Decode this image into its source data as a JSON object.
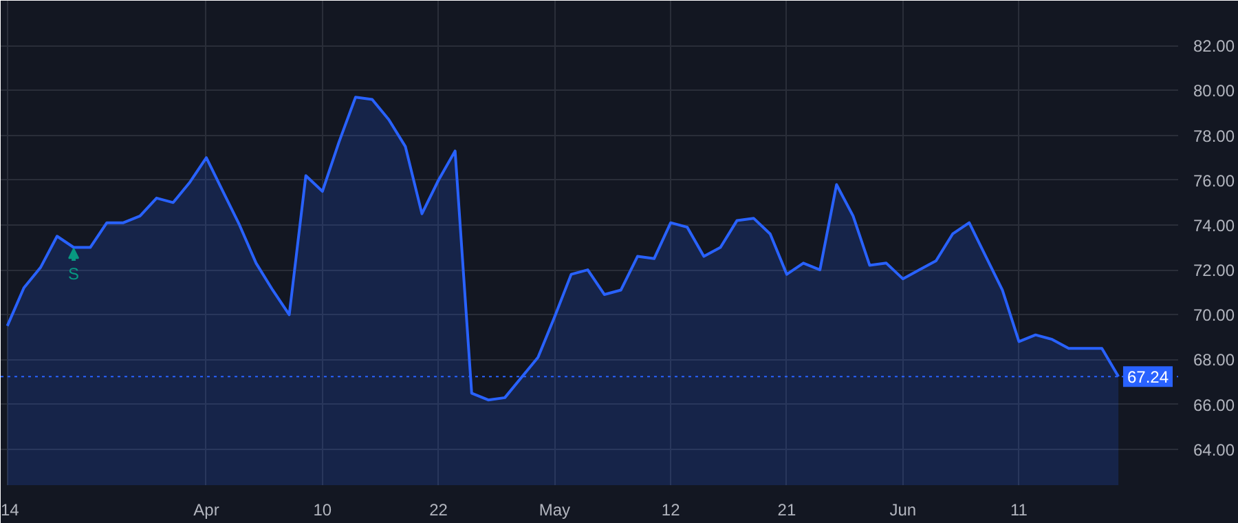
{
  "chart_data": {
    "type": "area",
    "categories": [
      "14",
      null,
      null,
      null,
      null,
      null,
      null,
      null,
      null,
      null,
      null,
      null,
      "Apr",
      null,
      null,
      null,
      null,
      null,
      null,
      "10",
      null,
      null,
      null,
      null,
      null,
      null,
      "22",
      null,
      null,
      null,
      null,
      null,
      null,
      "May",
      null,
      null,
      null,
      null,
      null,
      null,
      "12",
      null,
      null,
      null,
      null,
      null,
      null,
      "21",
      null,
      null,
      null,
      null,
      null,
      null,
      "Jun",
      null,
      null,
      null,
      null,
      null,
      null,
      "11",
      null,
      null,
      null,
      null,
      null,
      null
    ],
    "series": [
      {
        "color": "#2962ff",
        "values": [
          69.5,
          71.2,
          72.1,
          73.5,
          73.0,
          73.0,
          74.1,
          74.1,
          74.4,
          75.2,
          75.0,
          75.9,
          77.0,
          75.5,
          74.0,
          72.3,
          71.1,
          70.0,
          76.2,
          75.5,
          77.7,
          79.7,
          79.6,
          78.7,
          77.5,
          74.5,
          76.0,
          77.3,
          66.5,
          66.2,
          66.3,
          67.2,
          68.1,
          69.9,
          71.8,
          72.0,
          70.9,
          71.1,
          72.6,
          72.5,
          74.1,
          73.9,
          72.6,
          73.0,
          74.2,
          74.3,
          73.6,
          71.8,
          72.3,
          72.0,
          75.8,
          74.4,
          72.2,
          72.3,
          71.6,
          72.0,
          72.4,
          73.6,
          74.1,
          72.6,
          71.1,
          68.8,
          69.1,
          68.9,
          68.5,
          68.5,
          68.5,
          67.24
        ]
      }
    ],
    "ylim": [
      62.4,
      84.0
    ],
    "yticks": [
      {
        "value": 64,
        "label": "64.00"
      },
      {
        "value": 66,
        "label": "66.00"
      },
      {
        "value": 68,
        "label": "68.00"
      },
      {
        "value": 70,
        "label": "70.00"
      },
      {
        "value": 72,
        "label": "72.00"
      },
      {
        "value": 74,
        "label": "74.00"
      },
      {
        "value": 76,
        "label": "76.00"
      },
      {
        "value": 78,
        "label": "78.00"
      },
      {
        "value": 80,
        "label": "80.00"
      },
      {
        "value": 82,
        "label": "82.00"
      }
    ],
    "ref_lines": [
      {
        "axis": "y",
        "value": 67.24,
        "label": "67.24",
        "color": "#2962ff",
        "line_style": "dotted"
      }
    ],
    "annotations": [
      {
        "text": "S",
        "y": 73.0
      }
    ],
    "grid": true
  }
}
